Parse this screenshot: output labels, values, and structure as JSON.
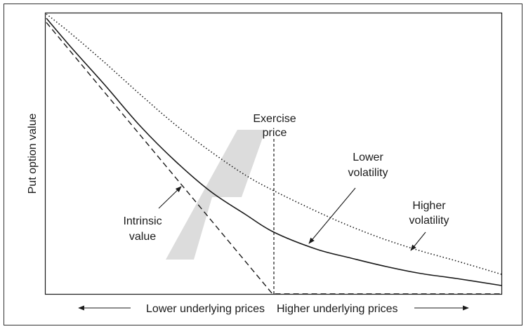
{
  "chart_data": {
    "type": "line",
    "title": "",
    "xlabel": "",
    "ylabel": "Put option value",
    "axis_arrows": {
      "left": "Lower underlying prices",
      "right": "Higher underlying prices"
    },
    "grid": false,
    "series": [
      {
        "key": "intrinsic",
        "style": "dashed"
      },
      {
        "key": "lower",
        "style": "solid"
      },
      {
        "key": "higher",
        "style": "dotted"
      }
    ],
    "annotations": {
      "exercise_price": [
        "Exercise",
        "price"
      ],
      "lower_volatility": [
        "Lower",
        "volatility"
      ],
      "higher_volatility": [
        "Higher",
        "volatility"
      ],
      "intrinsic_value": [
        "Intrinsic",
        "value"
      ]
    }
  },
  "colors": {
    "line": "#1a1a1a",
    "watermark": "#dcdcdc",
    "frame": "#333333"
  }
}
